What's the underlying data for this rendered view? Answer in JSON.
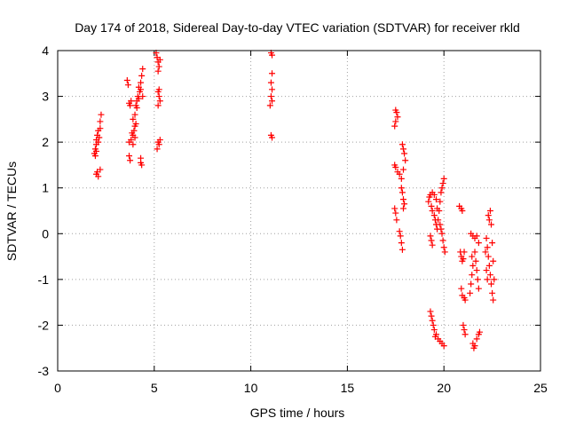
{
  "colors": {
    "points": "#ff0000",
    "frame": "#000000",
    "grid": "#a0a0a0",
    "background": "#ffffff"
  },
  "chart_data": {
    "type": "scatter",
    "title": "Day 174 of 2018, Sidereal Day-to-day VTEC variation (SDTVAR) for receiver rkld",
    "xlabel": "GPS time / hours",
    "ylabel": "SDTVAR / TECUs",
    "xlim": [
      0,
      25
    ],
    "ylim": [
      -3,
      4
    ],
    "xticks": [
      0,
      5,
      10,
      15,
      20,
      25
    ],
    "yticks": [
      -3,
      -2,
      -1,
      0,
      1,
      2,
      3,
      4
    ],
    "xtick_labels": [
      "0",
      "5",
      "10",
      "15",
      "20",
      "25"
    ],
    "ytick_labels": [
      "-3",
      "-2",
      "-1",
      "0",
      "1",
      "2",
      "3",
      "4"
    ],
    "grid": true,
    "marker": "plus",
    "series": [
      {
        "points": [
          [
            1.9,
            1.75
          ],
          [
            1.95,
            1.85
          ],
          [
            2.0,
            1.95
          ],
          [
            2.0,
            2.05
          ],
          [
            2.05,
            2.15
          ],
          [
            2.0,
            1.8
          ],
          [
            2.1,
            2.0
          ],
          [
            2.15,
            2.1
          ],
          [
            2.1,
            2.25
          ],
          [
            2.2,
            2.3
          ],
          [
            2.2,
            2.45
          ],
          [
            2.25,
            2.6
          ],
          [
            2.0,
            1.3
          ],
          [
            2.05,
            1.35
          ],
          [
            2.1,
            1.25
          ],
          [
            2.2,
            1.4
          ],
          [
            1.95,
            1.7
          ],
          [
            3.6,
            3.35
          ],
          [
            3.65,
            3.25
          ],
          [
            3.7,
            2.85
          ],
          [
            3.75,
            2.8
          ],
          [
            3.8,
            2.9
          ],
          [
            3.85,
            2.2
          ],
          [
            3.8,
            2.05
          ],
          [
            3.9,
            2.15
          ],
          [
            3.95,
            2.25
          ],
          [
            4.0,
            2.35
          ],
          [
            3.7,
            1.7
          ],
          [
            3.75,
            1.6
          ],
          [
            3.7,
            2.0
          ],
          [
            3.9,
            2.5
          ],
          [
            4.0,
            2.6
          ],
          [
            4.05,
            2.8
          ],
          [
            4.1,
            2.9
          ],
          [
            4.15,
            3.0
          ],
          [
            4.2,
            2.95
          ],
          [
            4.25,
            3.1
          ],
          [
            4.3,
            3.3
          ],
          [
            4.35,
            3.45
          ],
          [
            4.4,
            3.6
          ],
          [
            4.3,
            3.15
          ],
          [
            4.1,
            2.75
          ],
          [
            4.05,
            2.4
          ],
          [
            4.0,
            2.1
          ],
          [
            3.9,
            1.95
          ],
          [
            4.3,
            1.65
          ],
          [
            4.35,
            1.5
          ],
          [
            4.3,
            1.55
          ],
          [
            4.4,
            3.0
          ],
          [
            4.2,
            3.2
          ],
          [
            5.1,
            3.95
          ],
          [
            5.15,
            3.85
          ],
          [
            5.2,
            3.75
          ],
          [
            5.25,
            3.65
          ],
          [
            5.3,
            3.8
          ],
          [
            5.2,
            3.55
          ],
          [
            5.2,
            3.1
          ],
          [
            5.25,
            3.0
          ],
          [
            5.3,
            2.9
          ],
          [
            5.2,
            2.8
          ],
          [
            5.25,
            3.15
          ],
          [
            5.2,
            2.0
          ],
          [
            5.25,
            1.95
          ],
          [
            5.3,
            2.05
          ],
          [
            5.15,
            1.85
          ],
          [
            11.05,
            3.95
          ],
          [
            11.1,
            3.9
          ],
          [
            11.1,
            3.5
          ],
          [
            11.05,
            3.3
          ],
          [
            11.1,
            3.15
          ],
          [
            11.05,
            3.0
          ],
          [
            11.1,
            2.9
          ],
          [
            11.0,
            2.8
          ],
          [
            11.05,
            2.15
          ],
          [
            11.1,
            2.1
          ],
          [
            17.5,
            2.7
          ],
          [
            17.55,
            2.65
          ],
          [
            17.6,
            2.55
          ],
          [
            17.5,
            2.45
          ],
          [
            17.45,
            2.35
          ],
          [
            17.45,
            1.5
          ],
          [
            17.5,
            1.45
          ],
          [
            17.6,
            1.35
          ],
          [
            17.7,
            1.3
          ],
          [
            17.8,
            1.2
          ],
          [
            17.85,
            1.95
          ],
          [
            17.9,
            1.85
          ],
          [
            17.95,
            1.75
          ],
          [
            18.0,
            1.6
          ],
          [
            17.9,
            1.4
          ],
          [
            17.8,
            1.0
          ],
          [
            17.85,
            0.9
          ],
          [
            17.9,
            0.75
          ],
          [
            17.95,
            0.65
          ],
          [
            17.9,
            0.55
          ],
          [
            17.45,
            0.55
          ],
          [
            17.5,
            0.45
          ],
          [
            17.55,
            0.3
          ],
          [
            17.7,
            0.05
          ],
          [
            17.75,
            -0.05
          ],
          [
            17.8,
            -0.2
          ],
          [
            17.85,
            -0.35
          ],
          [
            19.2,
            0.7
          ],
          [
            19.25,
            0.8
          ],
          [
            19.3,
            0.85
          ],
          [
            19.4,
            0.9
          ],
          [
            19.5,
            0.85
          ],
          [
            19.35,
            0.6
          ],
          [
            19.4,
            0.5
          ],
          [
            19.5,
            0.4
          ],
          [
            19.55,
            0.3
          ],
          [
            19.6,
            0.2
          ],
          [
            19.65,
            0.1
          ],
          [
            19.7,
            0.3
          ],
          [
            19.75,
            0.5
          ],
          [
            19.8,
            0.7
          ],
          [
            19.85,
            0.9
          ],
          [
            19.9,
            1.0
          ],
          [
            19.95,
            1.1
          ],
          [
            20.0,
            1.2
          ],
          [
            19.8,
            0.2
          ],
          [
            19.85,
            0.1
          ],
          [
            19.9,
            0.0
          ],
          [
            19.95,
            -0.15
          ],
          [
            20.0,
            -0.3
          ],
          [
            20.05,
            -0.4
          ],
          [
            19.3,
            -0.05
          ],
          [
            19.35,
            -0.15
          ],
          [
            19.4,
            -0.25
          ],
          [
            19.6,
            0.75
          ],
          [
            19.65,
            0.55
          ],
          [
            19.3,
            -1.7
          ],
          [
            19.35,
            -1.8
          ],
          [
            19.4,
            -1.9
          ],
          [
            19.45,
            -2.0
          ],
          [
            19.5,
            -2.1
          ],
          [
            19.6,
            -2.2
          ],
          [
            19.7,
            -2.3
          ],
          [
            19.8,
            -2.35
          ],
          [
            19.9,
            -2.4
          ],
          [
            20.0,
            -2.45
          ],
          [
            19.55,
            -2.25
          ],
          [
            20.8,
            0.6
          ],
          [
            20.9,
            0.55
          ],
          [
            20.95,
            0.5
          ],
          [
            20.85,
            -0.4
          ],
          [
            20.9,
            -0.5
          ],
          [
            20.95,
            -0.6
          ],
          [
            21.0,
            -0.55
          ],
          [
            21.05,
            -0.4
          ],
          [
            20.9,
            -1.2
          ],
          [
            20.95,
            -1.35
          ],
          [
            21.05,
            -1.4
          ],
          [
            21.1,
            -1.45
          ],
          [
            21.0,
            -2.0
          ],
          [
            21.05,
            -2.1
          ],
          [
            21.1,
            -2.2
          ],
          [
            21.4,
            0.0
          ],
          [
            21.5,
            -0.05
          ],
          [
            21.6,
            -0.1
          ],
          [
            21.7,
            -0.05
          ],
          [
            21.8,
            -0.2
          ],
          [
            21.45,
            -0.5
          ],
          [
            21.5,
            -0.7
          ],
          [
            21.45,
            -0.9
          ],
          [
            21.4,
            -1.1
          ],
          [
            21.35,
            -1.3
          ],
          [
            21.6,
            -0.4
          ],
          [
            21.65,
            -0.6
          ],
          [
            21.7,
            -0.8
          ],
          [
            21.75,
            -1.0
          ],
          [
            21.8,
            -1.2
          ],
          [
            21.5,
            -2.4
          ],
          [
            21.55,
            -2.5
          ],
          [
            21.6,
            -2.45
          ],
          [
            21.7,
            -2.3
          ],
          [
            21.8,
            -2.2
          ],
          [
            21.85,
            -2.15
          ],
          [
            22.2,
            -0.1
          ],
          [
            22.25,
            -0.3
          ],
          [
            22.3,
            -0.5
          ],
          [
            22.35,
            -0.7
          ],
          [
            22.4,
            -0.9
          ],
          [
            22.45,
            -1.1
          ],
          [
            22.5,
            -1.3
          ],
          [
            22.55,
            -1.45
          ],
          [
            22.3,
            0.4
          ],
          [
            22.35,
            0.3
          ],
          [
            22.4,
            0.5
          ],
          [
            22.45,
            0.2
          ],
          [
            22.5,
            -0.2
          ],
          [
            22.55,
            -0.6
          ],
          [
            22.6,
            -1.0
          ],
          [
            22.2,
            -0.8
          ],
          [
            22.25,
            -1.0
          ],
          [
            22.15,
            -0.4
          ]
        ]
      }
    ]
  }
}
